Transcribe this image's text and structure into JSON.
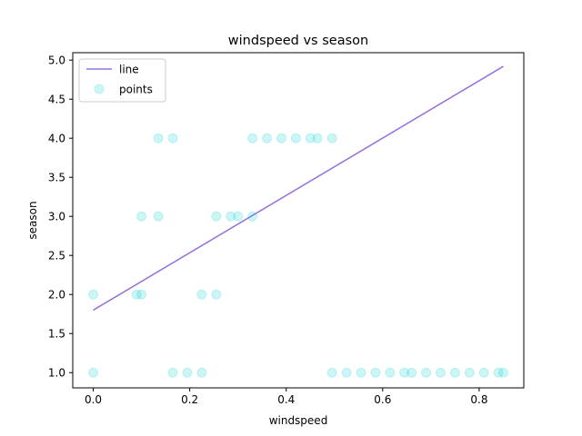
{
  "chart_data": {
    "type": "scatter",
    "title": "windspeed vs season",
    "xlabel": "windspeed",
    "ylabel": "season",
    "xlim": [
      -0.0425,
      0.8925
    ],
    "ylim": [
      0.805,
      5.095
    ],
    "xticks": [
      0.0,
      0.2,
      0.4,
      0.6,
      0.8
    ],
    "xtick_labels": [
      "0.0",
      "0.2",
      "0.4",
      "0.6",
      "0.8"
    ],
    "yticks": [
      1.0,
      1.5,
      2.0,
      2.5,
      3.0,
      3.5,
      4.0,
      4.5,
      5.0
    ],
    "ytick_labels": [
      "1.0",
      "1.5",
      "2.0",
      "2.5",
      "3.0",
      "3.5",
      "4.0",
      "4.5",
      "5.0"
    ],
    "grid": false,
    "legend_position": "top-left",
    "series": [
      {
        "name": "line",
        "kind": "line",
        "color": "#9370db",
        "x": [
          0.0,
          0.85
        ],
        "y": [
          1.8,
          4.92
        ]
      },
      {
        "name": "points",
        "kind": "scatter",
        "color": "#00ced1",
        "x": [
          0.0,
          0.0,
          0.09,
          0.1,
          0.1,
          0.135,
          0.135,
          0.165,
          0.165,
          0.195,
          0.225,
          0.225,
          0.255,
          0.255,
          0.285,
          0.3,
          0.33,
          0.33,
          0.36,
          0.39,
          0.42,
          0.45,
          0.465,
          0.495,
          0.495,
          0.525,
          0.555,
          0.585,
          0.615,
          0.645,
          0.66,
          0.69,
          0.72,
          0.75,
          0.78,
          0.81,
          0.84,
          0.85
        ],
        "y": [
          1.0,
          2.0,
          2.0,
          2.0,
          3.0,
          3.0,
          4.0,
          4.0,
          1.0,
          1.0,
          1.0,
          2.0,
          2.0,
          3.0,
          3.0,
          3.0,
          3.0,
          4.0,
          4.0,
          4.0,
          4.0,
          4.0,
          4.0,
          4.0,
          1.0,
          1.0,
          1.0,
          1.0,
          1.0,
          1.0,
          1.0,
          1.0,
          1.0,
          1.0,
          1.0,
          1.0,
          1.0,
          1.0
        ]
      }
    ]
  }
}
